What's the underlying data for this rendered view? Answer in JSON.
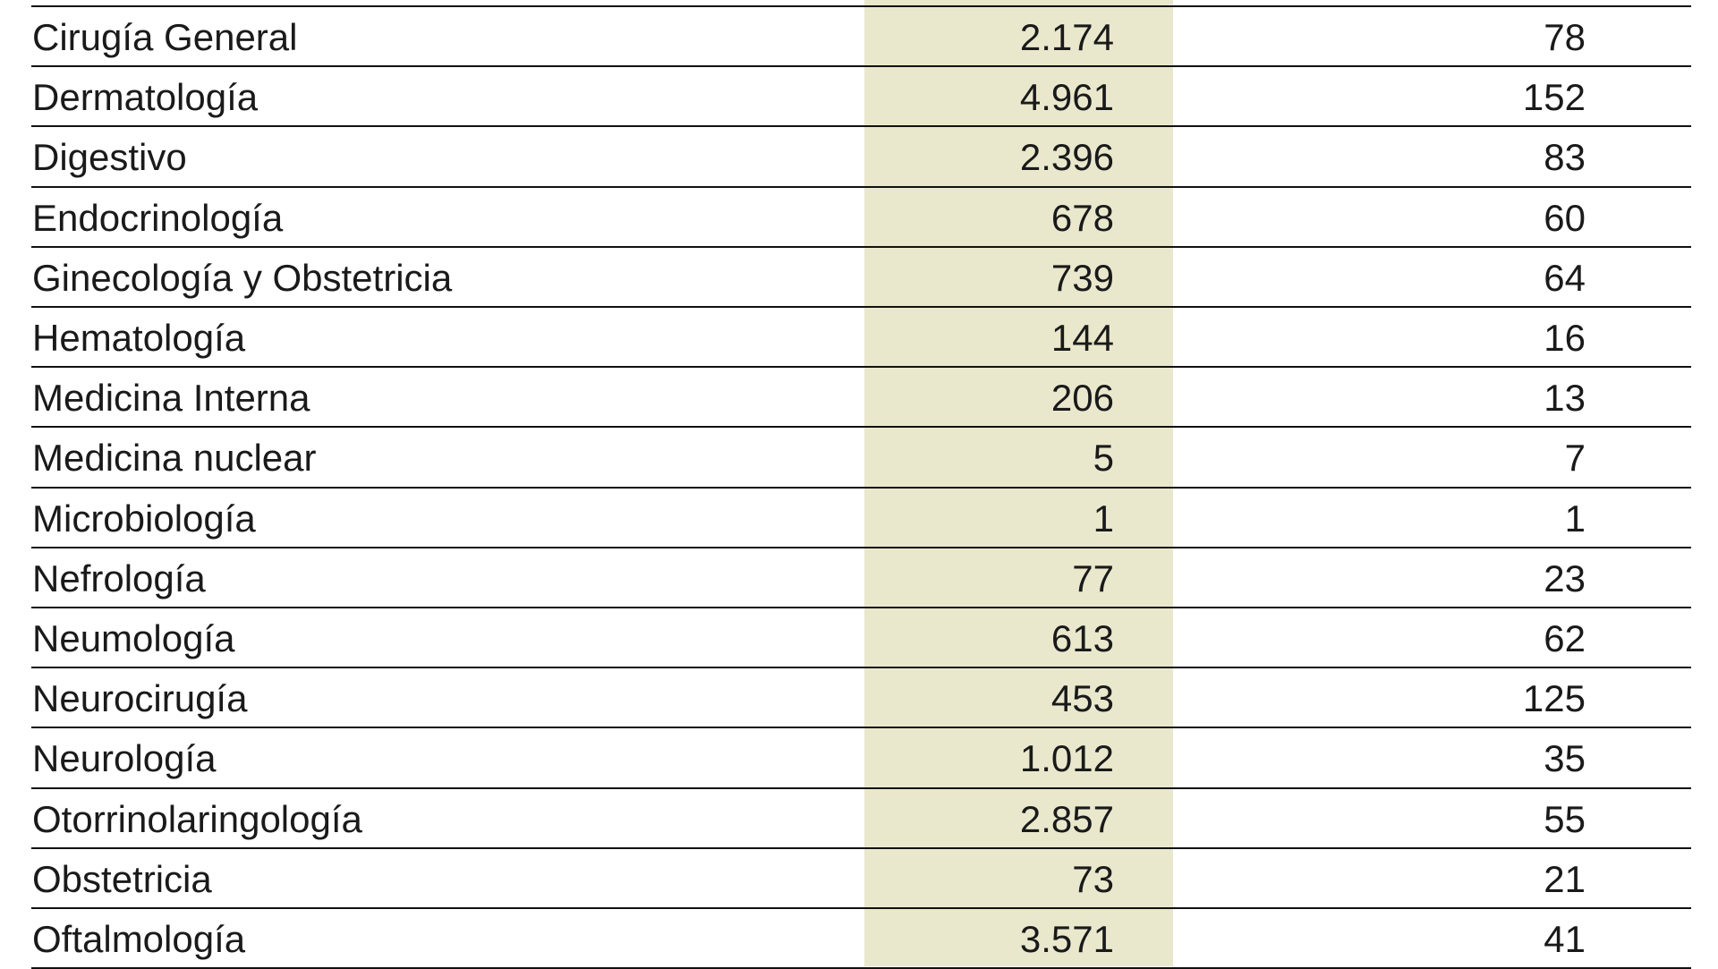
{
  "table": {
    "rows": [
      [
        "Cirugía General",
        "2.174",
        "78"
      ],
      [
        "Dermatología",
        "4.961",
        "152"
      ],
      [
        "Digestivo",
        "2.396",
        "83"
      ],
      [
        "Endocrinología",
        "678",
        "60"
      ],
      [
        "Ginecología y Obstetricia",
        "739",
        "64"
      ],
      [
        "Hematología",
        "144",
        "16"
      ],
      [
        "Medicina Interna",
        "206",
        "13"
      ],
      [
        "Medicina nuclear",
        "5",
        "7"
      ],
      [
        "Microbiología",
        "1",
        "1"
      ],
      [
        "Nefrología",
        "77",
        "23"
      ],
      [
        "Neumología",
        "613",
        "62"
      ],
      [
        "Neurocirugía",
        "453",
        "125"
      ],
      [
        "Neurología",
        "1.012",
        "35"
      ],
      [
        "Otorrinolaringología",
        "2.857",
        "55"
      ],
      [
        "Obstetricia",
        "73",
        "21"
      ],
      [
        "Oftalmología",
        "3.571",
        "41"
      ]
    ]
  }
}
